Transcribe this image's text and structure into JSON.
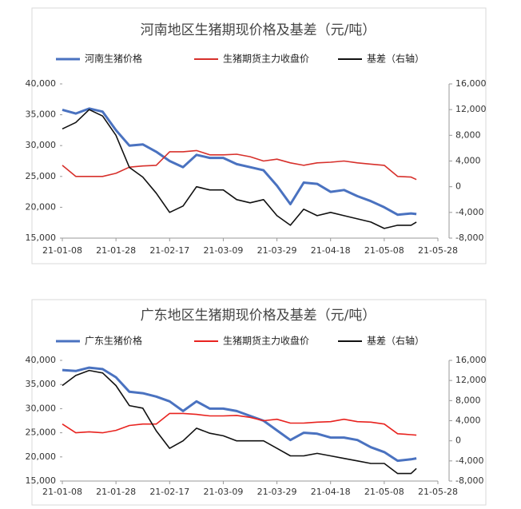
{
  "chart_data": [
    {
      "type": "line",
      "title": "河南地区生猪期现价格及基差（元/吨）",
      "x": [
        "21-01-08",
        "21-01-13",
        "21-01-18",
        "21-01-23",
        "21-01-28",
        "21-02-02",
        "21-02-07",
        "21-02-12",
        "21-02-17",
        "21-02-22",
        "21-02-27",
        "21-03-04",
        "21-03-09",
        "21-03-14",
        "21-03-19",
        "21-03-24",
        "21-03-29",
        "21-04-03",
        "21-04-08",
        "21-04-13",
        "21-04-18",
        "21-04-23",
        "21-04-28",
        "21-05-03",
        "21-05-08",
        "21-05-13",
        "21-05-18",
        "21-05-20"
      ],
      "series": [
        {
          "name": "河南生猪价格",
          "color": "#4a72c0",
          "values": [
            35800,
            35200,
            36000,
            35500,
            32500,
            30000,
            30200,
            29000,
            27500,
            26500,
            28500,
            28000,
            28000,
            27000,
            26500,
            26000,
            23500,
            20500,
            24000,
            23800,
            22500,
            22800,
            21800,
            21000,
            20000,
            18800,
            19000,
            18900
          ]
        },
        {
          "name": "生猪期货主力收盘价",
          "color": "#d7302b",
          "values": [
            26800,
            25000,
            25000,
            25000,
            25500,
            26500,
            26700,
            26800,
            29000,
            29000,
            29200,
            28500,
            28500,
            28600,
            28200,
            27500,
            27800,
            27200,
            26800,
            27200,
            27300,
            27500,
            27200,
            27000,
            26800,
            25000,
            24900,
            24500
          ]
        },
        {
          "name": "基差（右轴）",
          "color": "#111111",
          "axis": "y2",
          "values": [
            9000,
            10000,
            12000,
            11000,
            8000,
            3000,
            1500,
            -1000,
            -4000,
            -3000,
            0,
            -500,
            -500,
            -2000,
            -2500,
            -2000,
            -4500,
            -6000,
            -3500,
            -4500,
            -4000,
            -4500,
            -5000,
            -5500,
            -6500,
            -6000,
            -6000,
            -5500
          ]
        }
      ],
      "xlim": [
        "21-01-08",
        "21-05-28"
      ],
      "xticks": [
        "21-01-08",
        "21-01-28",
        "21-02-17",
        "21-03-09",
        "21-03-29",
        "21-04-18",
        "21-05-08",
        "21-05-28"
      ],
      "ylim": [
        15000,
        40000
      ],
      "yticks": [
        {
          "value": 15000,
          "label": "15,000"
        },
        {
          "value": 20000,
          "label": "20,000"
        },
        {
          "value": 25000,
          "label": "25,000"
        },
        {
          "value": 30000,
          "label": "30,000"
        },
        {
          "value": 35000,
          "label": "35,000"
        },
        {
          "value": 40000,
          "label": "40,000"
        }
      ],
      "y2lim": [
        -8000,
        16000
      ],
      "y2ticks": [
        {
          "value": -8000,
          "label": "-8,000"
        },
        {
          "value": -4000,
          "label": "-4,000"
        },
        0,
        {
          "value": 4000,
          "label": "4,000"
        },
        {
          "value": 8000,
          "label": "8,000"
        },
        {
          "value": 12000,
          "label": "12,000"
        },
        {
          "value": 16000,
          "label": "16,000"
        }
      ],
      "legend": "top"
    },
    {
      "type": "line",
      "title": "广东地区生猪期现价格及基差（元/吨）",
      "x": [
        "21-01-08",
        "21-01-13",
        "21-01-18",
        "21-01-23",
        "21-01-28",
        "21-02-02",
        "21-02-07",
        "21-02-12",
        "21-02-17",
        "21-02-22",
        "21-02-27",
        "21-03-04",
        "21-03-09",
        "21-03-14",
        "21-03-19",
        "21-03-24",
        "21-03-29",
        "21-04-03",
        "21-04-08",
        "21-04-13",
        "21-04-18",
        "21-04-23",
        "21-04-28",
        "21-05-03",
        "21-05-08",
        "21-05-13",
        "21-05-18",
        "21-05-20"
      ],
      "series": [
        {
          "name": "广东生猪价格",
          "color": "#4a72c0",
          "values": [
            38000,
            37800,
            38500,
            38200,
            36500,
            33500,
            33200,
            32500,
            31500,
            29500,
            31500,
            30000,
            30000,
            29500,
            28500,
            27500,
            25500,
            23500,
            25000,
            24800,
            24000,
            24000,
            23500,
            22000,
            21000,
            19200,
            19500,
            19700
          ]
        },
        {
          "name": "生猪期货主力收盘价",
          "color": "#e8231f",
          "values": [
            26800,
            25000,
            25200,
            25000,
            25500,
            26500,
            26800,
            26800,
            29000,
            29000,
            28800,
            28500,
            28500,
            28600,
            28200,
            27500,
            27800,
            27000,
            27000,
            27200,
            27300,
            27800,
            27300,
            27200,
            26800,
            24800,
            24600,
            24500
          ]
        },
        {
          "name": "基差（右轴）",
          "color": "#111111",
          "axis": "y2",
          "values": [
            11000,
            13000,
            14000,
            13500,
            11000,
            7000,
            6500,
            2000,
            -1500,
            0,
            2500,
            1500,
            1000,
            0,
            0,
            0,
            -1500,
            -3000,
            -3000,
            -2500,
            -3000,
            -3500,
            -4000,
            -4500,
            -4500,
            -6500,
            -6500,
            -5500
          ]
        }
      ],
      "xlim": [
        "21-01-08",
        "21-05-28"
      ],
      "xticks": [
        "21-01-08",
        "21-01-28",
        "21-02-17",
        "21-03-09",
        "21-03-29",
        "21-04-18",
        "21-05-08",
        "21-05-28"
      ],
      "ylim": [
        15000,
        40000
      ],
      "yticks": [
        {
          "value": 15000,
          "label": "15,000"
        },
        {
          "value": 20000,
          "label": "20,000"
        },
        {
          "value": 25000,
          "label": "25,000"
        },
        {
          "value": 30000,
          "label": "30,000"
        },
        {
          "value": 35000,
          "label": "35,000"
        },
        {
          "value": 40000,
          "label": "40,000"
        }
      ],
      "y2lim": [
        -8000,
        16000
      ],
      "y2ticks": [
        {
          "value": -8000,
          "label": "-8,000"
        },
        {
          "value": -4000,
          "label": "-4,000"
        },
        0,
        {
          "value": 4000,
          "label": "4,000"
        },
        {
          "value": 8000,
          "label": "8,000"
        },
        {
          "value": 12000,
          "label": "12,000"
        },
        {
          "value": 16000,
          "label": "16,000"
        }
      ],
      "legend": "top"
    }
  ]
}
